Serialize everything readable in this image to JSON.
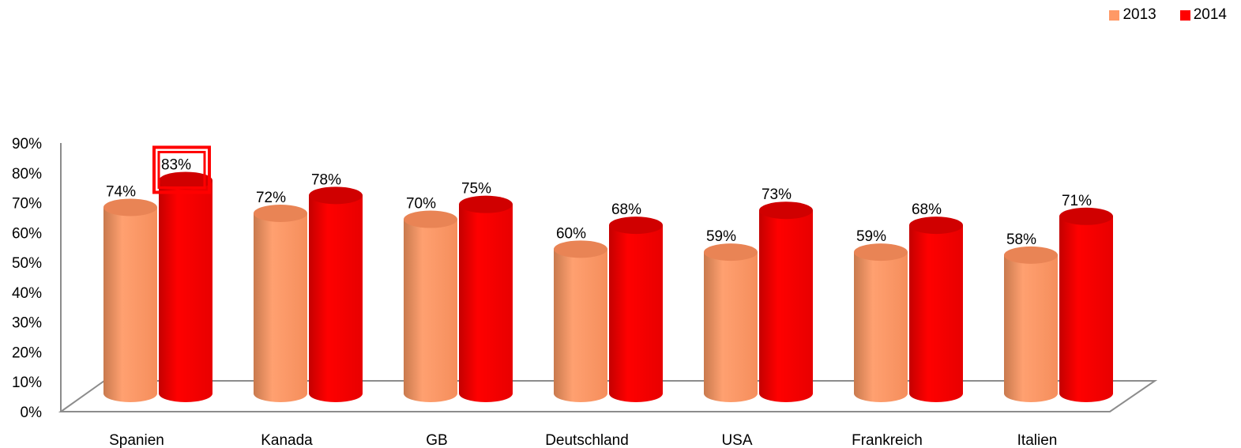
{
  "chart_data": {
    "type": "bar",
    "categories": [
      "Spanien",
      "Kanada",
      "GB",
      "Deutschland",
      "USA",
      "Frankreich",
      "Italien"
    ],
    "series": [
      {
        "name": "2013",
        "values": [
          74,
          72,
          70,
          60,
          59,
          59,
          58
        ],
        "labels": [
          "74%",
          "72%",
          "70%",
          "60%",
          "59%",
          "59%",
          "58%"
        ],
        "color": "#FF9966"
      },
      {
        "name": "2014",
        "values": [
          83,
          78,
          75,
          68,
          73,
          68,
          71
        ],
        "labels": [
          "83%",
          "78%",
          "75%",
          "68%",
          "73%",
          "68%",
          "71%"
        ],
        "color": "#FF0000"
      }
    ],
    "y_ticks": [
      "0%",
      "10%",
      "20%",
      "30%",
      "40%",
      "50%",
      "60%",
      "70%",
      "80%",
      "90%"
    ],
    "ylim": [
      0,
      90
    ],
    "legend_position": "top-right",
    "highlight": {
      "series": 1,
      "category": 0,
      "color": "#FF0000"
    },
    "grid": false
  }
}
